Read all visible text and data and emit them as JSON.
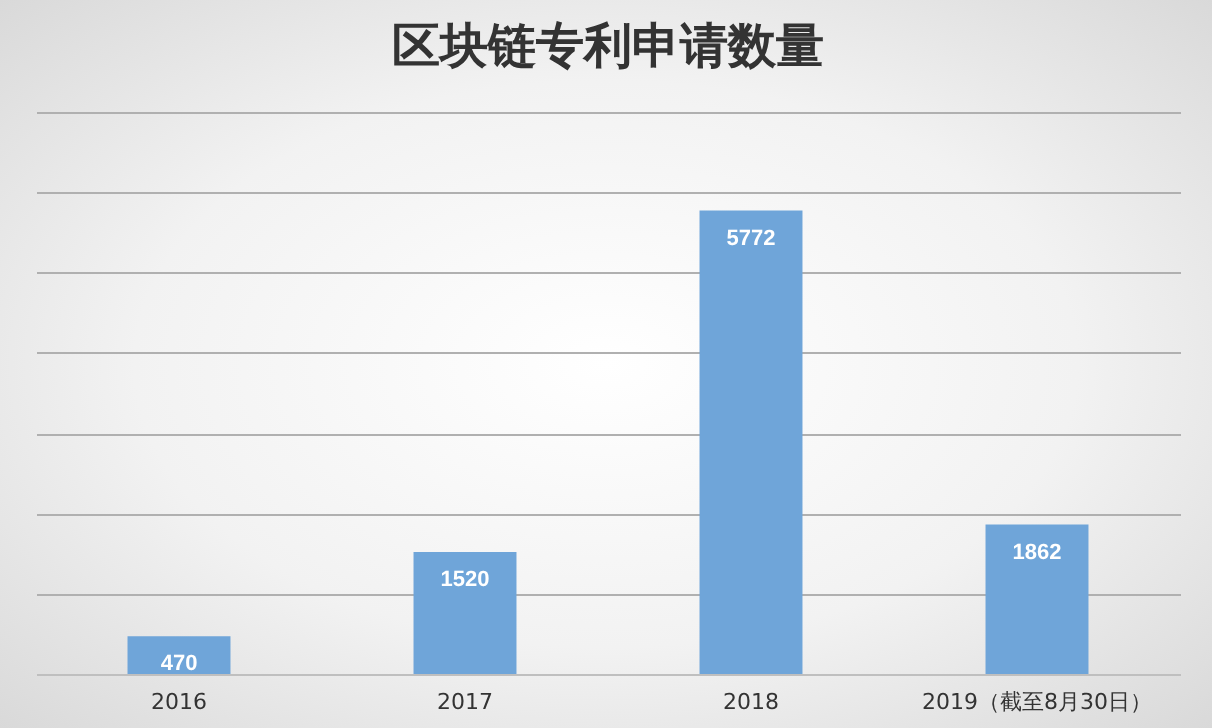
{
  "chart_data": {
    "type": "bar",
    "title": "区块链专利申请数量",
    "categories": [
      "2016",
      "2017",
      "2018",
      "2019（截至8月30日）"
    ],
    "values": [
      470,
      1520,
      5772,
      1862
    ],
    "color": "#6fa5d9",
    "ylim": [
      0,
      7000
    ],
    "yticks": [
      {
        "value": 0,
        "label": null
      },
      {
        "value": 1000,
        "label": null
      },
      {
        "value": 2000,
        "label": null
      },
      {
        "value": 3000,
        "label": null
      },
      {
        "value": 4000,
        "label": null
      },
      {
        "value": 5000,
        "label": null
      },
      {
        "value": 6000,
        "label": null
      },
      {
        "value": 7000,
        "label": null
      }
    ],
    "tick_labels": "x",
    "grid": "y",
    "data_labels": true
  }
}
